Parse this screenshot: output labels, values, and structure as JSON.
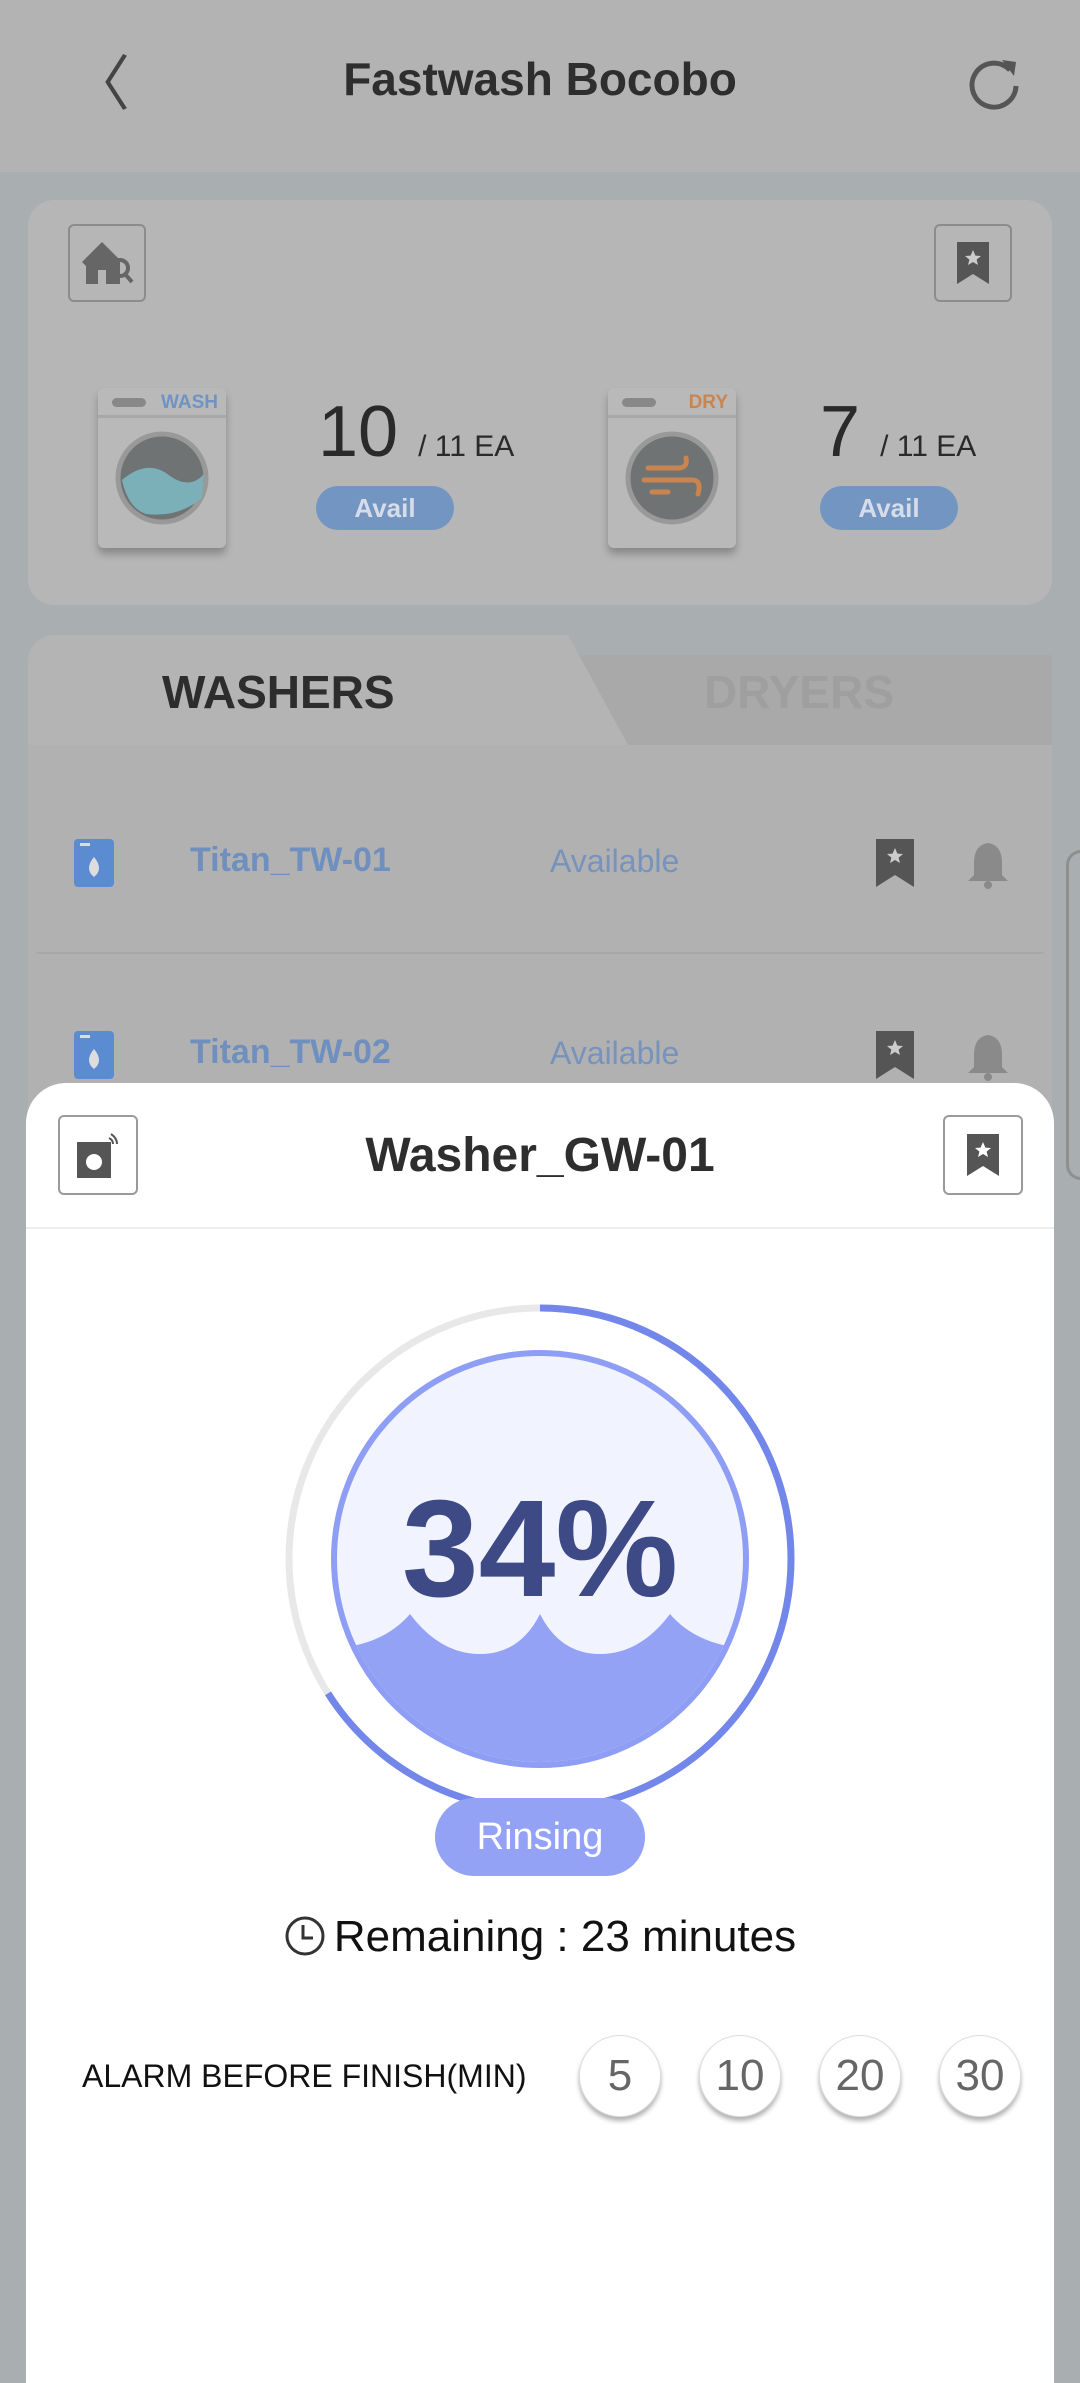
{
  "header": {
    "title": "Fastwash Bocobo",
    "back_icon": "chevron-left-icon",
    "refresh_icon": "refresh-icon"
  },
  "summary": {
    "wash": {
      "label": "WASH",
      "available": "10",
      "total": "/ 11 EA",
      "status": "Avail",
      "color": "#6f93c4"
    },
    "dry": {
      "label": "DRY",
      "available": "7",
      "total": "/ 11 EA",
      "status": "Avail",
      "color": "#c98450"
    }
  },
  "tabs": [
    {
      "label": "WASHERS",
      "active": true
    },
    {
      "label": "DRYERS",
      "active": false
    }
  ],
  "machines": [
    {
      "name": "Titan_TW-01",
      "status": "Available"
    },
    {
      "name": "Titan_TW-02",
      "status": "Available"
    }
  ],
  "detail": {
    "title": "Washer_GW-01",
    "progress_percent": 34,
    "progress_label": "34%",
    "phase": "Rinsing",
    "remaining": "Remaining : 23 minutes",
    "alarm_label": "ALARM BEFORE FINISH(MIN)",
    "alarm_options": [
      "5",
      "10",
      "20",
      "30"
    ],
    "accent": "#7386ea",
    "fill": "#93a2f5"
  }
}
